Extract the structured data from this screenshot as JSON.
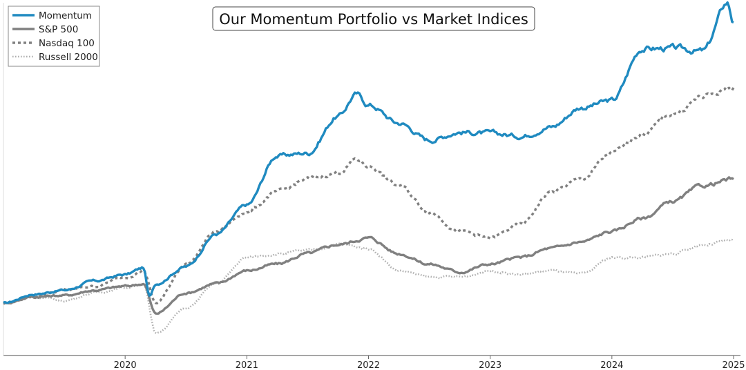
{
  "chart_data": {
    "type": "line",
    "title": "Our Momentum Portfolio vs Market Indices",
    "xlabel": "",
    "ylabel": "",
    "x_axis": {
      "start_year": 2019,
      "end_year": 2025,
      "tick_labels": [
        "2020",
        "2021",
        "2022",
        "2023",
        "2024",
        "2025"
      ],
      "tick_years": [
        2020,
        2021,
        2022,
        2023,
        2024,
        2025
      ]
    },
    "y_axis": {
      "visible": false,
      "ylim": [
        0.6,
        3.3
      ]
    },
    "grid": false,
    "legend": {
      "position": "top-left"
    },
    "series": [
      {
        "name": "Momentum",
        "color": "#1f8ac0",
        "style": "solid",
        "x": [
          2019.0,
          2019.25,
          2019.5,
          2019.75,
          2020.0,
          2020.15,
          2020.2,
          2020.25,
          2020.5,
          2020.75,
          2021.0,
          2021.25,
          2021.5,
          2021.75,
          2021.9,
          2022.0,
          2022.25,
          2022.5,
          2022.75,
          2023.0,
          2023.25,
          2023.5,
          2023.75,
          2024.0,
          2024.25,
          2024.5,
          2024.75,
          2024.95,
          2025.0
        ],
        "values": [
          1.0,
          1.07,
          1.1,
          1.17,
          1.22,
          1.27,
          1.05,
          1.15,
          1.28,
          1.53,
          1.75,
          2.13,
          2.15,
          2.43,
          2.6,
          2.52,
          2.38,
          2.25,
          2.31,
          2.3,
          2.28,
          2.35,
          2.5,
          2.55,
          2.95,
          2.95,
          2.93,
          3.3,
          3.15
        ]
      },
      {
        "name": "S&P 500",
        "color": "#808080",
        "style": "solid",
        "x": [
          2019.0,
          2019.25,
          2019.5,
          2019.75,
          2020.0,
          2020.15,
          2020.25,
          2020.5,
          2020.75,
          2021.0,
          2021.25,
          2021.5,
          2021.75,
          2022.0,
          2022.25,
          2022.5,
          2022.75,
          2023.0,
          2023.25,
          2023.5,
          2023.75,
          2024.0,
          2024.25,
          2024.5,
          2024.75,
          2025.0
        ],
        "values": [
          1.0,
          1.05,
          1.06,
          1.1,
          1.13,
          1.15,
          0.92,
          1.08,
          1.15,
          1.25,
          1.3,
          1.38,
          1.45,
          1.5,
          1.38,
          1.3,
          1.24,
          1.3,
          1.35,
          1.42,
          1.47,
          1.55,
          1.65,
          1.78,
          1.9,
          1.95
        ]
      },
      {
        "name": "Nasdaq 100",
        "color": "#808080",
        "style": "dashed",
        "x": [
          2019.0,
          2019.25,
          2019.5,
          2019.75,
          2020.0,
          2020.15,
          2020.25,
          2020.5,
          2020.75,
          2021.0,
          2021.25,
          2021.5,
          2021.75,
          2021.9,
          2022.0,
          2022.25,
          2022.5,
          2022.75,
          2023.0,
          2023.25,
          2023.5,
          2023.75,
          2024.0,
          2024.25,
          2024.5,
          2024.75,
          2025.0
        ],
        "values": [
          1.0,
          1.05,
          1.1,
          1.13,
          1.2,
          1.25,
          1.0,
          1.3,
          1.55,
          1.7,
          1.85,
          1.95,
          2.0,
          2.1,
          2.05,
          1.9,
          1.7,
          1.55,
          1.5,
          1.6,
          1.85,
          1.95,
          2.15,
          2.3,
          2.45,
          2.58,
          2.65
        ]
      },
      {
        "name": "Russell 2000",
        "color": "#b0b0b0",
        "style": "dotted",
        "x": [
          2019.0,
          2019.25,
          2019.5,
          2019.75,
          2020.0,
          2020.15,
          2020.25,
          2020.5,
          2020.75,
          2021.0,
          2021.25,
          2021.5,
          2021.75,
          2022.0,
          2022.25,
          2022.5,
          2022.75,
          2023.0,
          2023.25,
          2023.5,
          2023.75,
          2024.0,
          2024.25,
          2024.5,
          2024.75,
          2025.0
        ],
        "values": [
          1.0,
          1.05,
          1.02,
          1.08,
          1.12,
          1.15,
          0.77,
          0.96,
          1.15,
          1.35,
          1.38,
          1.4,
          1.45,
          1.42,
          1.25,
          1.2,
          1.2,
          1.25,
          1.22,
          1.25,
          1.22,
          1.35,
          1.35,
          1.38,
          1.45,
          1.48
        ]
      }
    ]
  }
}
